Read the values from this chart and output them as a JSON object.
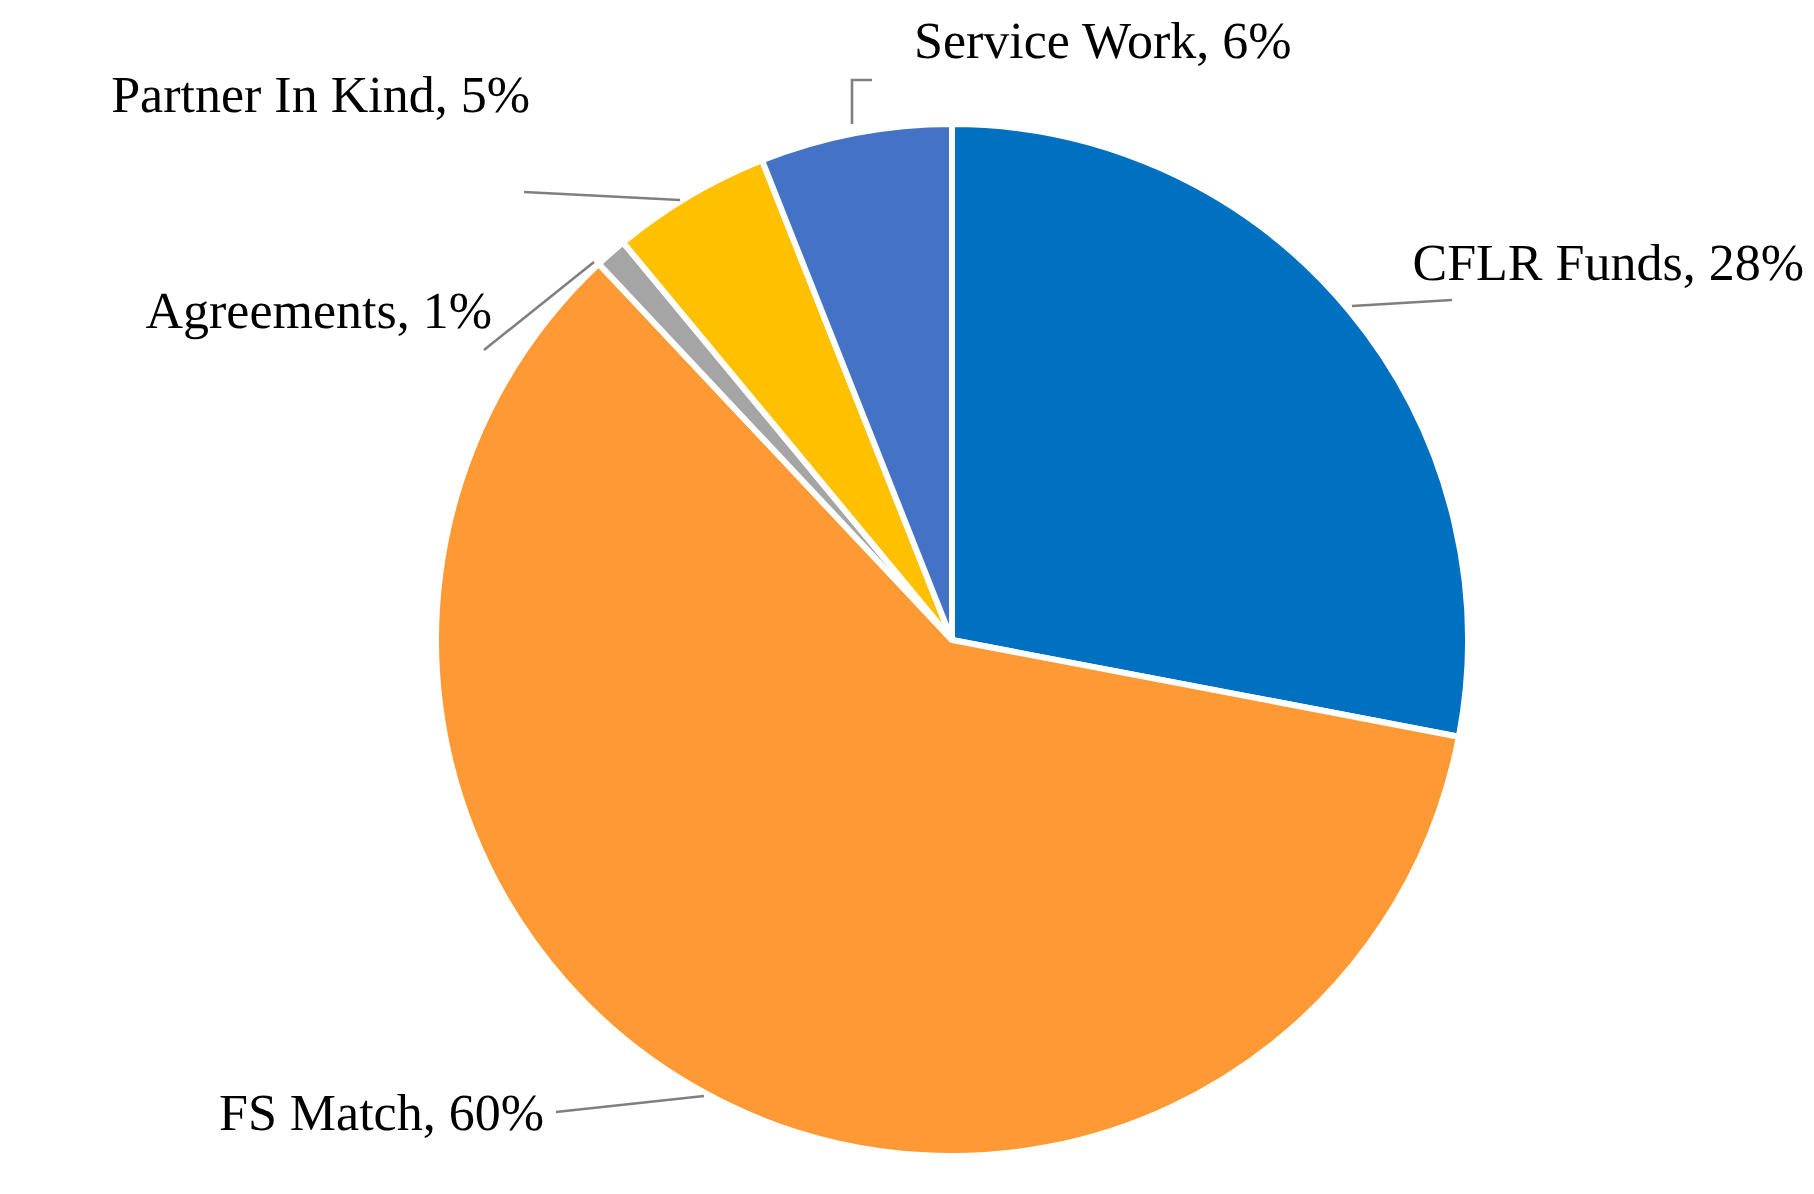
{
  "chart_data": {
    "type": "pie",
    "categories": [
      "CFLR Funds",
      "FS Match",
      "Agreements",
      "Partner In Kind",
      "Service Work"
    ],
    "values": [
      28,
      60,
      1,
      5,
      6
    ],
    "value_labels": [
      "28%",
      "60%",
      "1%",
      "5%",
      "6%"
    ],
    "colors": [
      "#0070c0",
      "#ff9933",
      "#a5a5a5",
      "#ffc000",
      "#4472c4"
    ],
    "legend": false
  }
}
